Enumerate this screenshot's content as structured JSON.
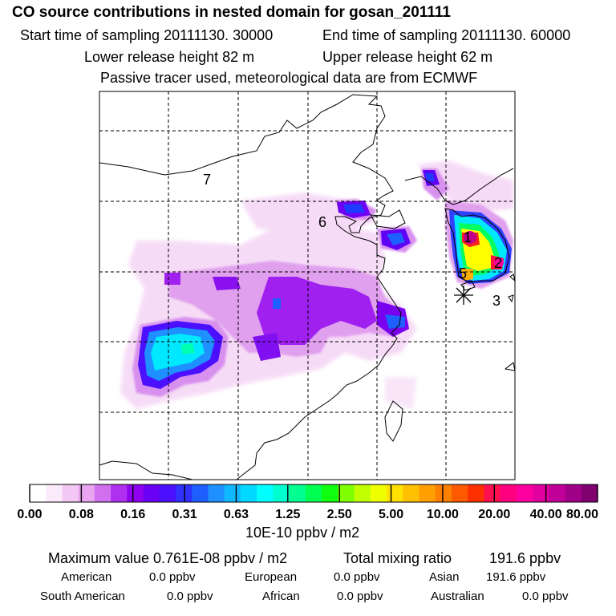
{
  "header": {
    "title": "CO  source contributions in nested domain for gosan_201111",
    "start_label": "Start time of sampling 20111130. 30000",
    "end_label": "End time of sampling 20111130. 60000",
    "lower_label": "Lower release height   82 m",
    "upper_label": "Upper release height   62 m",
    "tracer_note": "Passive tracer used, meteorological data are from ECMWF"
  },
  "map": {
    "region_labels": [
      "7",
      "6",
      "1",
      "2",
      "5",
      "3"
    ],
    "receptor_marker": "asterisk",
    "colors": {
      "low": "#f6d8f6",
      "lavender": "#e6a6ee",
      "purple": "#a020f0",
      "violet": "#7a00f0",
      "blue": "#1e3cff",
      "sky": "#1ea0ff",
      "cyan": "#00f8ff",
      "green": "#00ff60",
      "yellow": "#ffff00",
      "orange": "#ff8c00",
      "red": "#ff2020",
      "magenta": "#ff00a0",
      "darkmag": "#b0008a"
    }
  },
  "legend": {
    "tick_labels": [
      "0.00",
      "0.08",
      "0.16",
      "0.31",
      "0.63",
      "1.25",
      "2.50",
      "5.00",
      "10.00",
      "20.00",
      "40.00",
      "80.00"
    ],
    "unit": "10E-10 ppbv / m2",
    "swatches": [
      "#ffffff",
      "#fbeafb",
      "#f4c8f4",
      "#eaa5f0",
      "#d070ee",
      "#b030f0",
      "#9000f0",
      "#6a00f5",
      "#4a10ff",
      "#3030ff",
      "#1e60ff",
      "#1e90ff",
      "#10b8ff",
      "#00d8ff",
      "#00ffff",
      "#00ffd0",
      "#00ff90",
      "#00ff50",
      "#10ff10",
      "#80ff00",
      "#c0ff00",
      "#f0ff00",
      "#ffe000",
      "#ffc000",
      "#ffa000",
      "#ff8000",
      "#ff5a00",
      "#ff3000",
      "#ff1050",
      "#ff0080",
      "#ff00a0",
      "#e000a0",
      "#c00098",
      "#a00088",
      "#800070"
    ]
  },
  "stats": {
    "max_label": "Maximum value  0.761E-08 ppbv / m2",
    "total_label": "Total mixing ratio",
    "total_value": "191.6 ppbv",
    "regions": [
      {
        "name": "American",
        "value": "0.0 ppbv"
      },
      {
        "name": "European",
        "value": "0.0 ppbv"
      },
      {
        "name": "Asian",
        "value": "191.6 ppbv"
      },
      {
        "name": "South American",
        "value": "0.0 ppbv"
      },
      {
        "name": "African",
        "value": "0.0 ppbv"
      },
      {
        "name": "Australian",
        "value": "0.0 ppbv"
      }
    ]
  }
}
